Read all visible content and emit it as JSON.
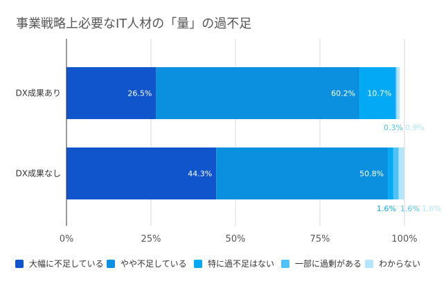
{
  "chart_data": {
    "type": "bar",
    "orientation": "horizontal",
    "stacked": true,
    "title": "事業戦略上必要なIT人材の「量」の過不足",
    "categories": [
      "DX成果あり",
      "DX成果なし"
    ],
    "series": [
      {
        "name": "大幅に不足している",
        "color": "#1155cc",
        "values": [
          26.5,
          44.3
        ],
        "labels": [
          "26.5%",
          "44.3%"
        ]
      },
      {
        "name": "やや不足している",
        "color": "#0b8fdf",
        "values": [
          60.2,
          50.8
        ],
        "labels": [
          "60.2%",
          "50.8%"
        ]
      },
      {
        "name": "特に過不足はない",
        "color": "#03a9f4",
        "values": [
          10.7,
          1.6
        ],
        "labels": [
          "10.7%",
          "1.6%"
        ]
      },
      {
        "name": "一部に過剰がある",
        "color": "#4fc3f7",
        "values": [
          0.3,
          1.6
        ],
        "labels": [
          "0.3%",
          "1.6%"
        ]
      },
      {
        "name": "わからない",
        "color": "#b3e5fc",
        "values": [
          0.9,
          1.6
        ],
        "labels": [
          "0.9%",
          "1.6%"
        ]
      }
    ],
    "xlim": [
      0,
      100
    ],
    "xticks": [
      0,
      25,
      50,
      75,
      100
    ],
    "xtick_labels": [
      "0%",
      "25%",
      "50%",
      "75%",
      "100%"
    ],
    "grid": true,
    "legend_position": "bottom"
  }
}
